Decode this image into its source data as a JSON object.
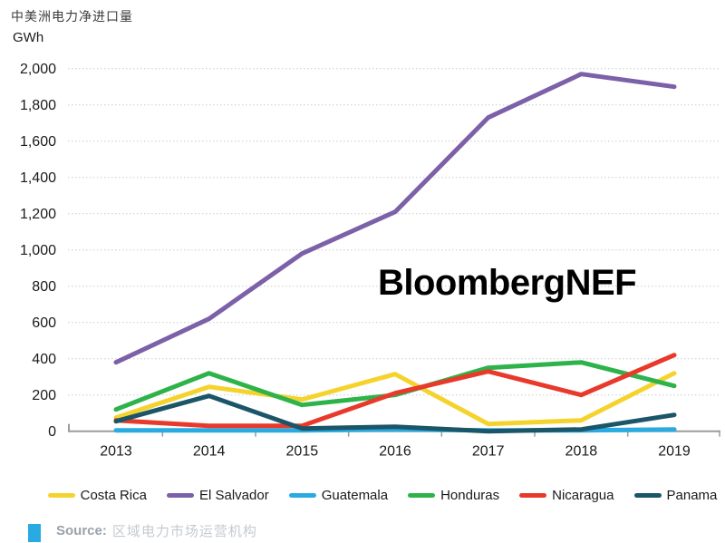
{
  "header": {
    "title": "中美洲电力净进口量",
    "unit": "GWh"
  },
  "watermark": "BloombergNEF",
  "source": {
    "label": "Source:",
    "text": "区域电力市场运营机构",
    "accent_color": "#29ABE2"
  },
  "colors": {
    "axis": "#9b9b9b",
    "grid": "#cbcbcb",
    "tick_label": "#1a1a1a"
  },
  "chart_data": {
    "type": "line",
    "title": "中美洲电力净进口量",
    "ylabel": "GWh",
    "xlabel": "",
    "x": [
      2013,
      2014,
      2015,
      2016,
      2017,
      2018,
      2019
    ],
    "ylim": [
      0,
      2000
    ],
    "ytick_step": 200,
    "grid": "horizontal-dotted",
    "legend_position": "bottom",
    "series": [
      {
        "name": "Costa Rica",
        "color": "#F5D32C",
        "values": [
          75,
          245,
          175,
          315,
          40,
          60,
          320
        ]
      },
      {
        "name": "El Salvador",
        "color": "#7C60A8",
        "values": [
          380,
          620,
          980,
          1210,
          1730,
          1970,
          1900
        ]
      },
      {
        "name": "Guatemala",
        "color": "#29ABE2",
        "values": [
          5,
          5,
          5,
          10,
          5,
          5,
          10
        ]
      },
      {
        "name": "Honduras",
        "color": "#2EB34B",
        "values": [
          120,
          320,
          145,
          200,
          350,
          380,
          250
        ]
      },
      {
        "name": "Nicaragua",
        "color": "#E8392B",
        "values": [
          60,
          30,
          30,
          210,
          330,
          200,
          420
        ]
      },
      {
        "name": "Panama",
        "color": "#1A5568",
        "values": [
          55,
          195,
          15,
          25,
          0,
          10,
          90
        ]
      }
    ]
  }
}
